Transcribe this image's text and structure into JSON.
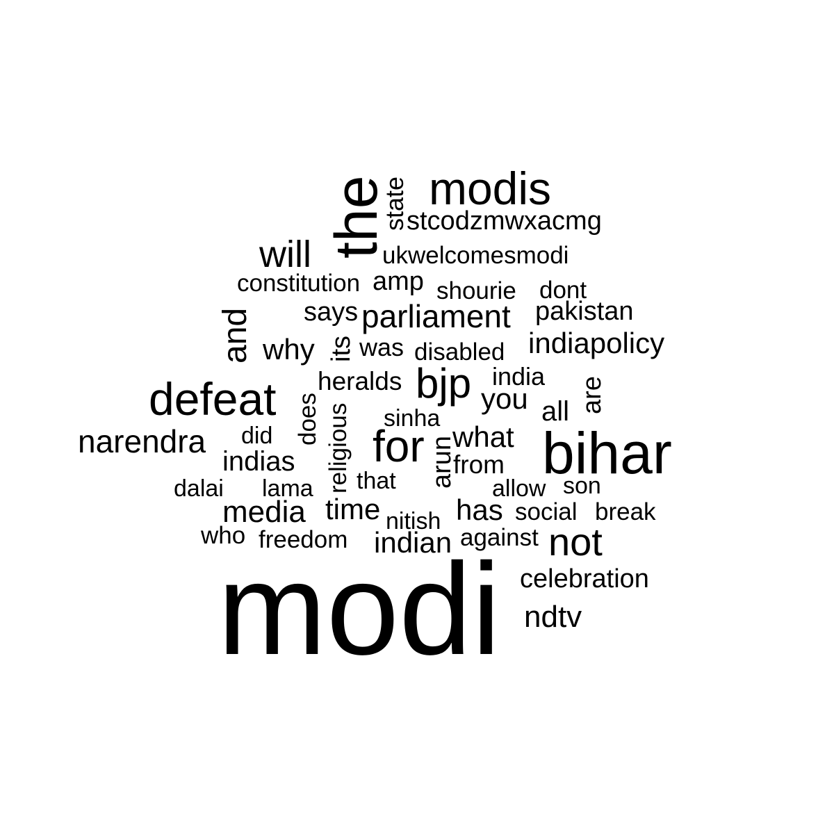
{
  "words": [
    {
      "text": "modi"
    },
    {
      "text": "bihar"
    },
    {
      "text": "the",
      "rotated": true
    },
    {
      "text": "modis"
    },
    {
      "text": "defeat"
    },
    {
      "text": "for"
    },
    {
      "text": "bjp"
    },
    {
      "text": "not"
    },
    {
      "text": "will"
    },
    {
      "text": "narendra"
    },
    {
      "text": "parliament"
    },
    {
      "text": "and",
      "rotated": true
    },
    {
      "text": "indiapolicy"
    },
    {
      "text": "media"
    },
    {
      "text": "ndtv"
    },
    {
      "text": "stcodzmwxacmg"
    },
    {
      "text": "why"
    },
    {
      "text": "you"
    },
    {
      "text": "what"
    },
    {
      "text": "indian"
    },
    {
      "text": "time"
    },
    {
      "text": "has"
    },
    {
      "text": "indias"
    },
    {
      "text": "celebration"
    },
    {
      "text": "pakistan"
    },
    {
      "text": "ukwelcomesmodi"
    },
    {
      "text": "constitution"
    },
    {
      "text": "amp"
    },
    {
      "text": "says"
    },
    {
      "text": "state",
      "rotated": true
    },
    {
      "text": "are",
      "rotated": true
    },
    {
      "text": "all"
    },
    {
      "text": "arun",
      "rotated": true
    },
    {
      "text": "heralds"
    },
    {
      "text": "from"
    },
    {
      "text": "india"
    },
    {
      "text": "shourie"
    },
    {
      "text": "dont"
    },
    {
      "text": "was"
    },
    {
      "text": "disabled"
    },
    {
      "text": "its",
      "rotated": true
    },
    {
      "text": "does",
      "rotated": true
    },
    {
      "text": "religious",
      "rotated": true
    },
    {
      "text": "sinha"
    },
    {
      "text": "did"
    },
    {
      "text": "that"
    },
    {
      "text": "dalai"
    },
    {
      "text": "lama"
    },
    {
      "text": "allow"
    },
    {
      "text": "son"
    },
    {
      "text": "social"
    },
    {
      "text": "break"
    },
    {
      "text": "nitish"
    },
    {
      "text": "who"
    },
    {
      "text": "freedom"
    },
    {
      "text": "against"
    }
  ]
}
